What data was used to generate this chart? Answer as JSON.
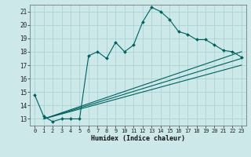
{
  "xlabel": "Humidex (Indice chaleur)",
  "bg_color": "#cce8e8",
  "grid_color": "#aad4d4",
  "line_color": "#006060",
  "xlim": [
    -0.5,
    23.5
  ],
  "ylim": [
    12.5,
    21.5
  ],
  "yticks": [
    13,
    14,
    15,
    16,
    17,
    18,
    19,
    20,
    21
  ],
  "xticks": [
    0,
    1,
    2,
    3,
    4,
    5,
    6,
    7,
    8,
    9,
    10,
    11,
    12,
    13,
    14,
    15,
    16,
    17,
    18,
    19,
    20,
    21,
    22,
    23
  ],
  "main_line_x": [
    0,
    1,
    2,
    3,
    4,
    5,
    6,
    7,
    8,
    9,
    10,
    11,
    12,
    13,
    14,
    15,
    16,
    17,
    18,
    19,
    20,
    21,
    22,
    23
  ],
  "main_line_y": [
    14.8,
    13.2,
    12.8,
    13.0,
    13.0,
    13.0,
    17.7,
    18.0,
    17.5,
    18.7,
    18.0,
    18.5,
    20.2,
    21.3,
    21.0,
    20.4,
    19.5,
    19.3,
    18.9,
    18.9,
    18.5,
    18.1,
    18.0,
    17.6
  ],
  "trend1_x": [
    1,
    23
  ],
  "trend1_y": [
    13.0,
    17.5
  ],
  "trend2_x": [
    1,
    23
  ],
  "trend2_y": [
    13.0,
    18.0
  ],
  "trend3_x": [
    1,
    23
  ],
  "trend3_y": [
    13.0,
    17.0
  ]
}
